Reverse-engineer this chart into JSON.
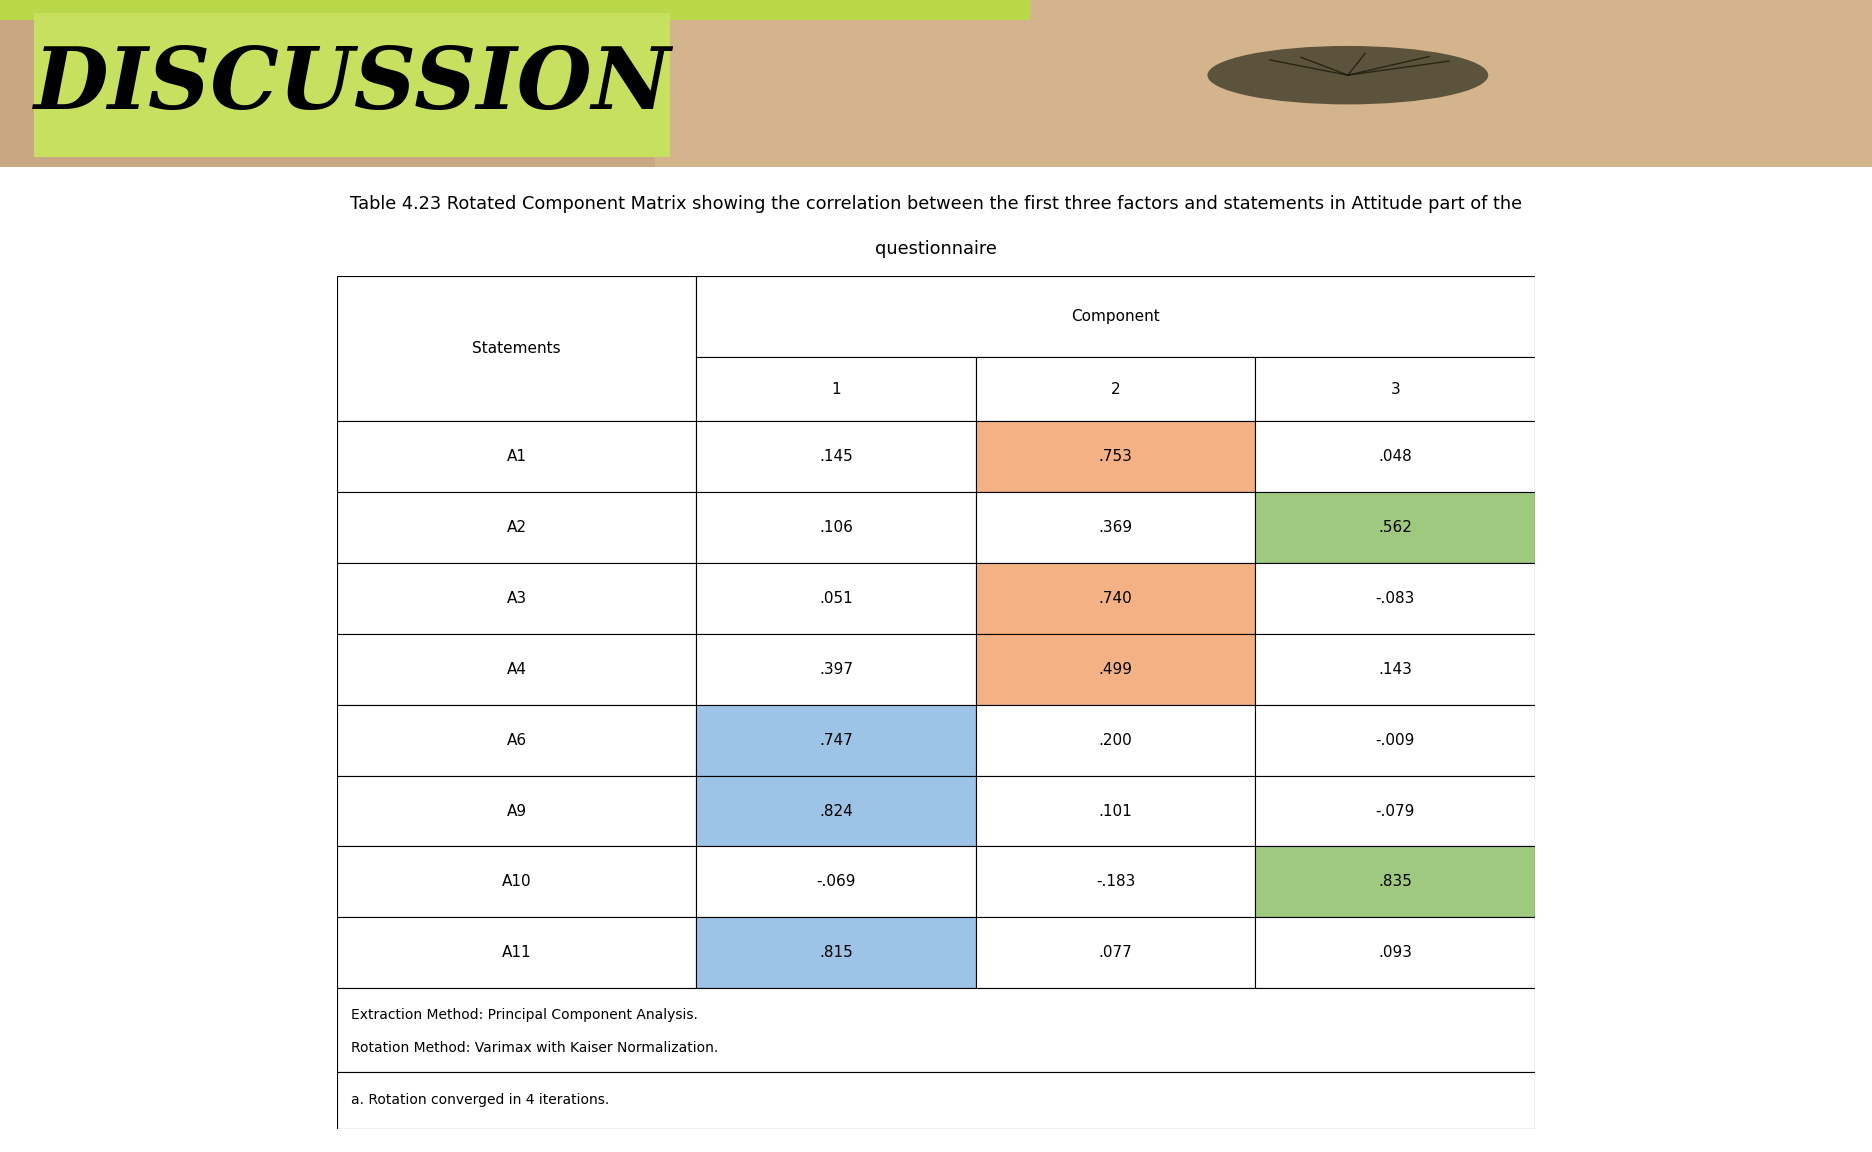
{
  "title_line1": "Table 4.23 Rotated Component Matrix showing the correlation between the first three factors and statements in Attitude part of the",
  "title_line2": "questionnaire",
  "discussion_text": "DISCUSSION",
  "discussion_bg": "#c8e668",
  "top_banner_skin": "#d4a574",
  "statements": [
    "A1",
    "A2",
    "A3",
    "A4",
    "A6",
    "A9",
    "A10",
    "A11"
  ],
  "component_header": "Component",
  "col_headers": [
    "1",
    "2",
    "3"
  ],
  "data": [
    [
      ".145",
      ".753",
      ".048"
    ],
    [
      ".106",
      ".369",
      ".562"
    ],
    [
      ".051",
      ".740",
      "-.083"
    ],
    [
      ".397",
      ".499",
      ".143"
    ],
    [
      ".747",
      ".200",
      "-.009"
    ],
    [
      ".824",
      ".101",
      "-.079"
    ],
    [
      "-.069",
      "-.183",
      ".835"
    ],
    [
      ".815",
      ".077",
      ".093"
    ]
  ],
  "cell_colors": [
    [
      "#ffffff",
      "#f4b183",
      "#ffffff"
    ],
    [
      "#ffffff",
      "#ffffff",
      "#9fc97e"
    ],
    [
      "#ffffff",
      "#f4b183",
      "#ffffff"
    ],
    [
      "#ffffff",
      "#f4b183",
      "#ffffff"
    ],
    [
      "#9dc3e6",
      "#ffffff",
      "#ffffff"
    ],
    [
      "#9dc3e6",
      "#ffffff",
      "#ffffff"
    ],
    [
      "#ffffff",
      "#ffffff",
      "#9fc97e"
    ],
    [
      "#9dc3e6",
      "#ffffff",
      "#ffffff"
    ]
  ],
  "footnote1": "Extraction Method: Principal Component Analysis.",
  "footnote2": "Rotation Method: Varimax with Kaiser Normalization.",
  "footnote3": "a. Rotation converged in 4 iterations.",
  "fig_width": 18.72,
  "fig_height": 11.52,
  "dpi": 100
}
